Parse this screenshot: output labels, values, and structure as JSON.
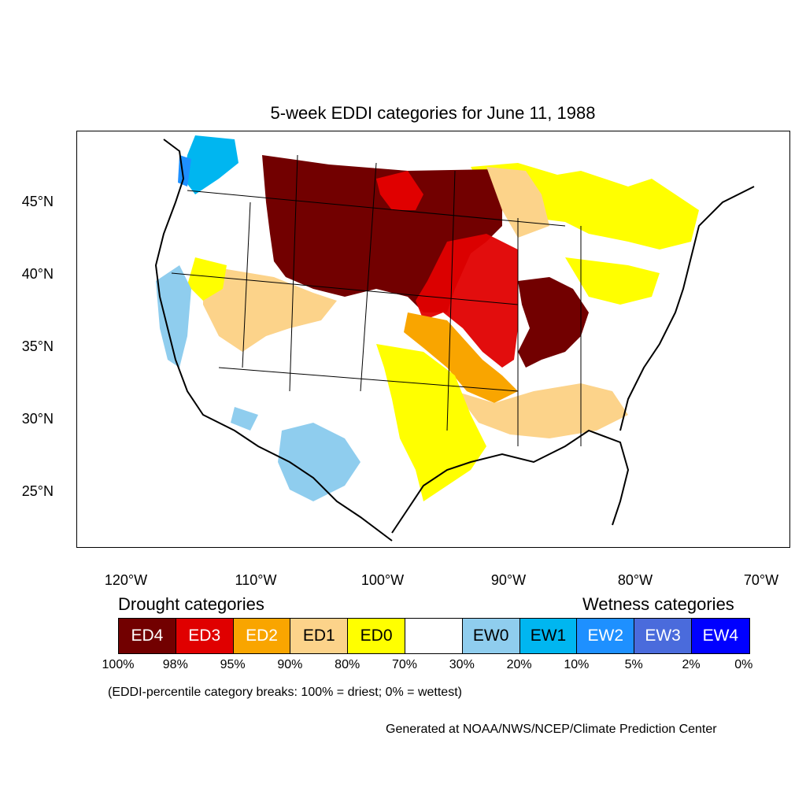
{
  "title": "5-week EDDI categories for June 11, 1988",
  "lat_ticks": [
    "45°N",
    "40°N",
    "35°N",
    "30°N",
    "25°N"
  ],
  "lon_ticks": [
    "120°W",
    "110°W",
    "100°W",
    "90°W",
    "80°W",
    "70°W"
  ],
  "legend": {
    "drought_heading": "Drought categories",
    "wetness_heading": "Wetness categories",
    "categories": [
      {
        "label": "ED4",
        "color": "#720000"
      },
      {
        "label": "ED3",
        "color": "#e00000"
      },
      {
        "label": "ED2",
        "color": "#f9a500"
      },
      {
        "label": "ED1",
        "color": "#fcd38a"
      },
      {
        "label": "ED0",
        "color": "#ffff00"
      },
      {
        "label": "",
        "color": "#ffffff"
      },
      {
        "label": "EW0",
        "color": "#8fcdee"
      },
      {
        "label": "EW1",
        "color": "#00b6f0"
      },
      {
        "label": "EW2",
        "color": "#1e90ff"
      },
      {
        "label": "EW3",
        "color": "#4a6bdc"
      },
      {
        "label": "EW4",
        "color": "#0000ff"
      }
    ],
    "breaks": [
      "100%",
      "98%",
      "95%",
      "90%",
      "80%",
      "70%",
      "30%",
      "20%",
      "10%",
      "5%",
      "2%",
      "0%"
    ]
  },
  "note": "(EDDI-percentile category breaks: 100% = driest; 0% = wettest)",
  "credit": "Generated at NOAA/NWS/NCEP/Climate Prediction Center"
}
